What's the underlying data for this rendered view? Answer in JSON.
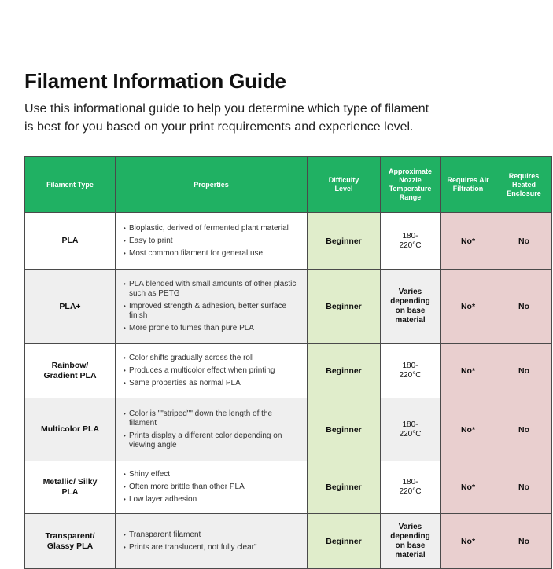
{
  "page": {
    "title": "Filament Information Guide",
    "intro": "Use this informational guide to help you determine which type of filament is best for you based on your print requirements and experience level."
  },
  "table": {
    "headers": [
      "Filament Type",
      "Properties",
      "Difficulty Level",
      "Approximate Nozzle Temperature Range",
      "Requires Air Filtration",
      "Requires Heated Enclosure"
    ],
    "rows": [
      {
        "type": "PLA",
        "props": [
          "Bioplastic, derived of fermented plant material",
          "Easy to print",
          "Most common filament for general use"
        ],
        "difficulty": "Beginner",
        "temp": "180-220°C",
        "air": "No*",
        "enclosure": "No"
      },
      {
        "type": "PLA+",
        "props": [
          "PLA blended with small amounts of other plastic such as PETG",
          "Improved strength & adhesion,  better surface finish",
          "More prone to fumes than pure PLA"
        ],
        "difficulty": "Beginner",
        "temp": "Varies depending on base material",
        "air": "No*",
        "enclosure": "No"
      },
      {
        "type": "Rainbow/ Gradient PLA",
        "props": [
          "Color shifts gradually across the roll",
          "Produces a multicolor effect when printing",
          "Same properties as normal PLA"
        ],
        "difficulty": "Beginner",
        "temp": "180-220°C",
        "air": "No*",
        "enclosure": "No"
      },
      {
        "type": "Multicolor PLA",
        "props": [
          "Color is \"\"striped\"\" down the length of the filament",
          "Prints display a different color depending on viewing angle"
        ],
        "difficulty": "Beginner",
        "temp": "180-220°C",
        "air": "No*",
        "enclosure": "No"
      },
      {
        "type": "Metallic/ Silky PLA",
        "props": [
          "Shiny effect",
          "Often more brittle than other PLA",
          "Low layer adhesion"
        ],
        "difficulty": "Beginner",
        "temp": "180-220°C",
        "air": "No*",
        "enclosure": "No"
      },
      {
        "type": "Transparent/ Glassy PLA",
        "props": [
          "Transparent filament",
          "Prints are translucent, not fully clear\""
        ],
        "difficulty": "Beginner",
        "temp": "Varies depending on base material",
        "air": "No*",
        "enclosure": "No"
      }
    ]
  },
  "colors": {
    "header": "#20b163",
    "difficulty": "#e0edcb",
    "filtration": "#e9cfcf"
  }
}
